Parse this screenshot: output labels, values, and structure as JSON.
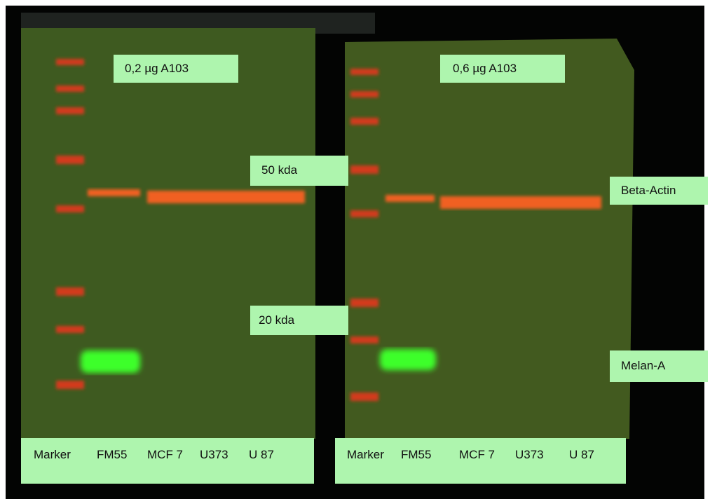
{
  "panels": [
    {
      "title": "0,2 µg A103",
      "lanes": [
        "Marker",
        "FM55",
        "MCF 7",
        "U373",
        "U 87"
      ]
    },
    {
      "title": "0,6 µg A103",
      "lanes": [
        "Marker",
        "FM55",
        "MCF 7",
        "U373",
        "U 87"
      ]
    }
  ],
  "size_markers": [
    "50 kda",
    "20 kda"
  ],
  "band_labels": [
    "Beta-Actin",
    "Melan-A"
  ]
}
